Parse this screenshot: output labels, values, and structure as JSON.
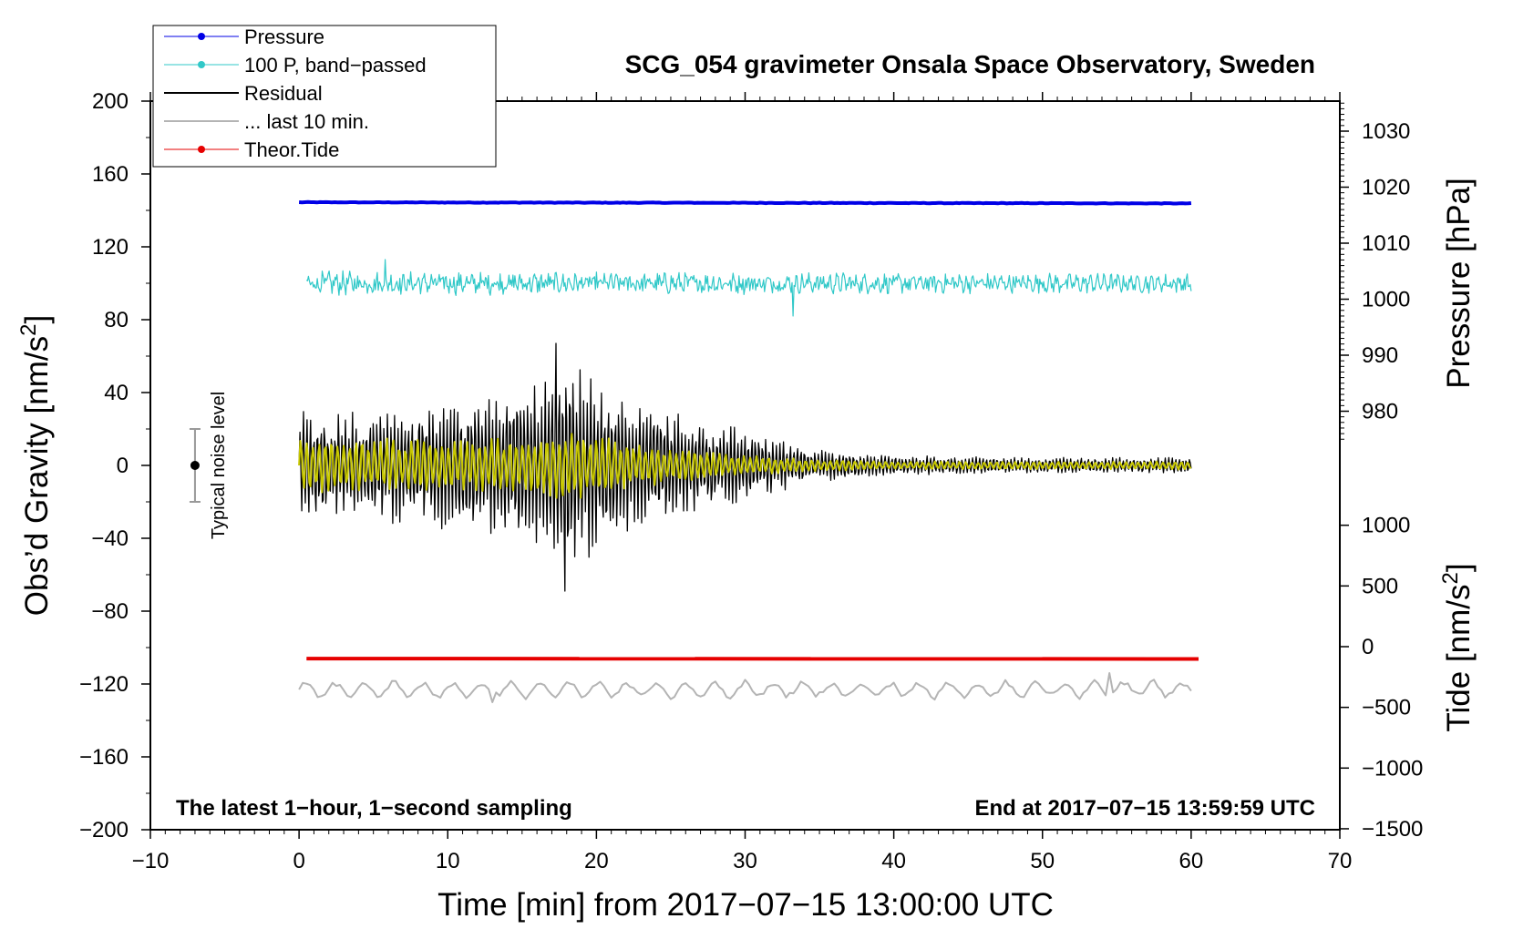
{
  "chart_data": {
    "type": "line",
    "title": "SCG_054 gravimeter Onsala Space Observatory, Sweden",
    "xlabel": "Time [min] from 2017−07−15 13:00:00 UTC",
    "ylabel_left": "Obs’d Gravity [nm/s",
    "ylabel_left_sup": "2",
    "ylabel_left_end": "]",
    "ylabel_right_pressure": "Pressure [hPa]",
    "ylabel_right_tide": "Tide [nm/s",
    "ylabel_right_tide_sup": "2",
    "ylabel_right_tide_end": "]",
    "xlim": [
      -10,
      70
    ],
    "ylim_left": [
      -200,
      200
    ],
    "ylim_pressure_visible": [
      975,
      1035
    ],
    "ylim_tide": [
      -1500,
      1500
    ],
    "x_ticks": [
      "−10",
      "0",
      "10",
      "20",
      "30",
      "40",
      "50",
      "60",
      "70"
    ],
    "x_tick_values": [
      -10,
      0,
      10,
      20,
      30,
      40,
      50,
      60,
      70
    ],
    "y_left_ticks": [
      "200",
      "160",
      "120",
      "80",
      "40",
      "0",
      "−40",
      "−80",
      "−120",
      "−160",
      "−200"
    ],
    "y_left_tick_values": [
      200,
      160,
      120,
      80,
      40,
      0,
      -40,
      -80,
      -120,
      -160,
      -200
    ],
    "pressure_ticks": [
      "1030",
      "1020",
      "1010",
      "1000",
      "990",
      "980"
    ],
    "pressure_tick_values": [
      1030,
      1020,
      1010,
      1000,
      990,
      980
    ],
    "tide_ticks": [
      "1000",
      "500",
      "0",
      "−500",
      "−1000",
      "−1500"
    ],
    "tide_tick_values": [
      1000,
      500,
      0,
      -500,
      -1000,
      -1500
    ],
    "legend": {
      "location": "top-left",
      "entries": [
        {
          "label": "Pressure",
          "color": "#0000e6",
          "marker": true
        },
        {
          "label": "100 P, band−passed",
          "color": "#30c8c8",
          "marker": true
        },
        {
          "label": "Residual",
          "color": "#000000",
          "marker": false
        },
        {
          "label": "... last 10 min.",
          "color": "#b4b4b4",
          "marker": false
        },
        {
          "label": "Theor.Tide",
          "color": "#e60000",
          "marker": true
        }
      ]
    },
    "annotations": {
      "noise_label": "Typical noise level",
      "noise_center": 0,
      "noise_halfwidth": 20,
      "noise_x": -7,
      "bottom_left": "The latest 1−hour, 1−second sampling",
      "bottom_right": "End at 2017−07−15 13:59:59 UTC"
    },
    "series": [
      {
        "name": "Pressure",
        "axis": "pressure",
        "color": "#0000e6",
        "x_range": [
          0,
          60
        ],
        "start": 1017.3,
        "end": 1017.1,
        "noise": 0.1
      },
      {
        "name": "100 P, band-passed",
        "axis": "left",
        "color": "#30c8c8",
        "x_range": [
          0.5,
          60
        ],
        "offset": 100,
        "amplitude_start": 5,
        "amplitude_end": 4,
        "peak_max": 113,
        "peak_min": 82
      },
      {
        "name": "Residual",
        "axis": "left",
        "color": "#000000",
        "x_range": [
          0,
          60
        ],
        "offset": 0,
        "peak_max": 67,
        "peak_min": -69,
        "envelope_t": [
          0,
          5,
          10,
          15,
          18,
          22,
          25,
          30,
          35,
          40,
          50,
          60
        ],
        "envelope_amp": [
          28,
          28,
          32,
          40,
          58,
          35,
          28,
          18,
          8,
          5,
          4,
          4
        ]
      },
      {
        "name": "Residual (smoothed)",
        "axis": "left",
        "color": "#c8c800",
        "x_range": [
          0,
          60
        ],
        "offset": 0,
        "envelope_t": [
          0,
          5,
          10,
          15,
          18,
          22,
          25,
          30,
          35,
          40,
          50,
          60
        ],
        "envelope_amp": [
          14,
          14,
          13,
          14,
          18,
          12,
          9,
          5,
          3,
          2,
          2,
          2
        ]
      },
      {
        "name": "Theor.Tide",
        "axis": "tide",
        "color": "#e60000",
        "x_range": [
          0.5,
          60.5
        ],
        "start": -98,
        "end": -101
      },
      {
        "name": "... last 10 min.",
        "axis": "left",
        "color": "#b4b4b4",
        "x_range": [
          0,
          60
        ],
        "offset": -123,
        "amplitude": 4,
        "peak_max": -114,
        "peak_min": -130
      }
    ]
  }
}
